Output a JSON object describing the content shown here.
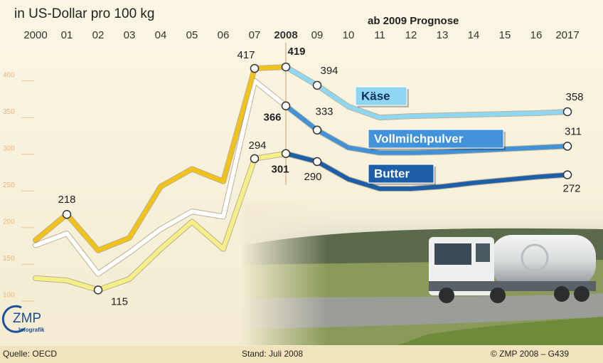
{
  "chart_data": {
    "type": "line",
    "title": "in US-Dollar pro 100 kg",
    "annotation": "ab 2009 Prognose",
    "categories": [
      "2000",
      "01",
      "02",
      "03",
      "04",
      "05",
      "06",
      "07",
      "2008",
      "09",
      "10",
      "11",
      "12",
      "13",
      "14",
      "15",
      "16",
      "2017"
    ],
    "series": [
      {
        "name": "Käse",
        "color": "#8fd6f2",
        "history_color": "#f0c21a",
        "values": [
          183,
          218,
          169,
          186,
          256,
          280,
          263,
          417,
          419,
          394,
          365,
          350,
          352,
          353,
          354,
          355,
          356,
          358
        ],
        "labeled": [
          1,
          7,
          8,
          9,
          17
        ]
      },
      {
        "name": "Vollmilchpulver",
        "color": "#4192d8",
        "history_color": "#ffffff",
        "values": [
          176,
          192,
          137,
          166,
          198,
          222,
          215,
          400,
          366,
          333,
          309,
          302,
          302,
          303,
          305,
          307,
          309,
          311
        ],
        "labeled": [
          8,
          9,
          17
        ]
      },
      {
        "name": "Butter",
        "color": "#1d5ea8",
        "history_color": "#f6ee86",
        "values": [
          131,
          128,
          115,
          130,
          171,
          208,
          171,
          294,
          301,
          290,
          266,
          253,
          253,
          256,
          261,
          265,
          269,
          272
        ],
        "labeled": [
          2,
          7,
          8,
          9,
          17
        ]
      }
    ],
    "ylim": [
      95,
      455
    ],
    "yticks": [
      100,
      150,
      200,
      250,
      300,
      350,
      400
    ],
    "logo": "ZMP",
    "logo_sub": "Infografik",
    "source": "Quelle: OECD",
    "date": "Stand: Juli 2008",
    "copyright": "© ZMP 2008 – G439"
  }
}
